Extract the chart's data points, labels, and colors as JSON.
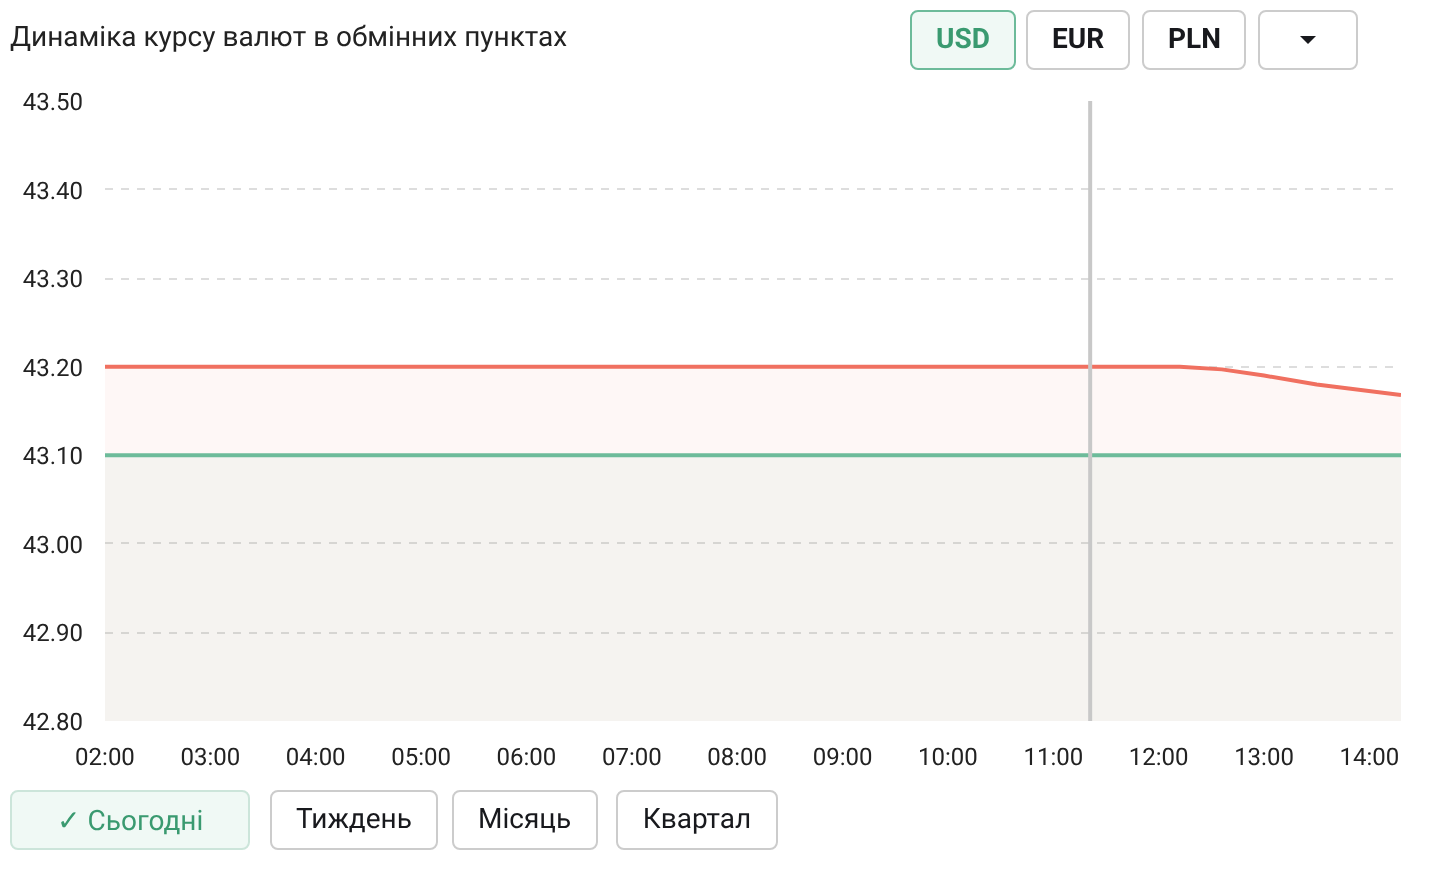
{
  "chart_data": {
    "type": "area",
    "title": "Динаміка курсу валют в обмінних пунктах",
    "annotations": [
      "USD",
      "EUR",
      "PLN",
      "✓ Сьогодні",
      "Тиждень",
      "Місяць",
      "Квартал"
    ],
    "series": [
      {
        "color": "#f07060",
        "x": [
          2,
          11.35,
          12.2,
          12.6,
          13.0,
          13.5,
          14.3
        ],
        "values": [
          43.2,
          43.2,
          43.2,
          43.197,
          43.19,
          43.18,
          43.168
        ]
      },
      {
        "color": "#6dbb9a",
        "x": [
          2,
          14.3
        ],
        "values": [
          43.1,
          43.1
        ]
      }
    ],
    "xlim": [
      2,
      14.3
    ],
    "xticks": [
      {
        "value": 2,
        "label": "02:00"
      },
      {
        "value": 3,
        "label": "03:00"
      },
      {
        "value": 4,
        "label": "04:00"
      },
      {
        "value": 5,
        "label": "05:00"
      },
      {
        "value": 6,
        "label": "06:00"
      },
      {
        "value": 7,
        "label": "07:00"
      },
      {
        "value": 8,
        "label": "08:00"
      },
      {
        "value": 9,
        "label": "09:00"
      },
      {
        "value": 10,
        "label": "10:00"
      },
      {
        "value": 11,
        "label": "11:00"
      },
      {
        "value": 12,
        "label": "12:00"
      },
      {
        "value": 13,
        "label": "13:00"
      },
      {
        "value": 14,
        "label": "14:00"
      }
    ],
    "ylim": [
      42.8,
      43.5
    ],
    "yticks": [
      {
        "value": 42.8,
        "label": "42.80"
      },
      {
        "value": 42.9,
        "label": "42.90"
      },
      {
        "value": 43.0,
        "label": "43.00"
      },
      {
        "value": 43.1,
        "label": "43.10"
      },
      {
        "value": 43.2,
        "label": "43.20"
      },
      {
        "value": 43.3,
        "label": "43.30"
      },
      {
        "value": 43.4,
        "label": "43.40"
      },
      {
        "value": 43.5,
        "label": "43.50"
      }
    ],
    "ref_lines": [
      {
        "axis": "x",
        "value": 11.35,
        "color": "#c8c8c8"
      }
    ],
    "grid": "y",
    "line_style": "solid"
  }
}
